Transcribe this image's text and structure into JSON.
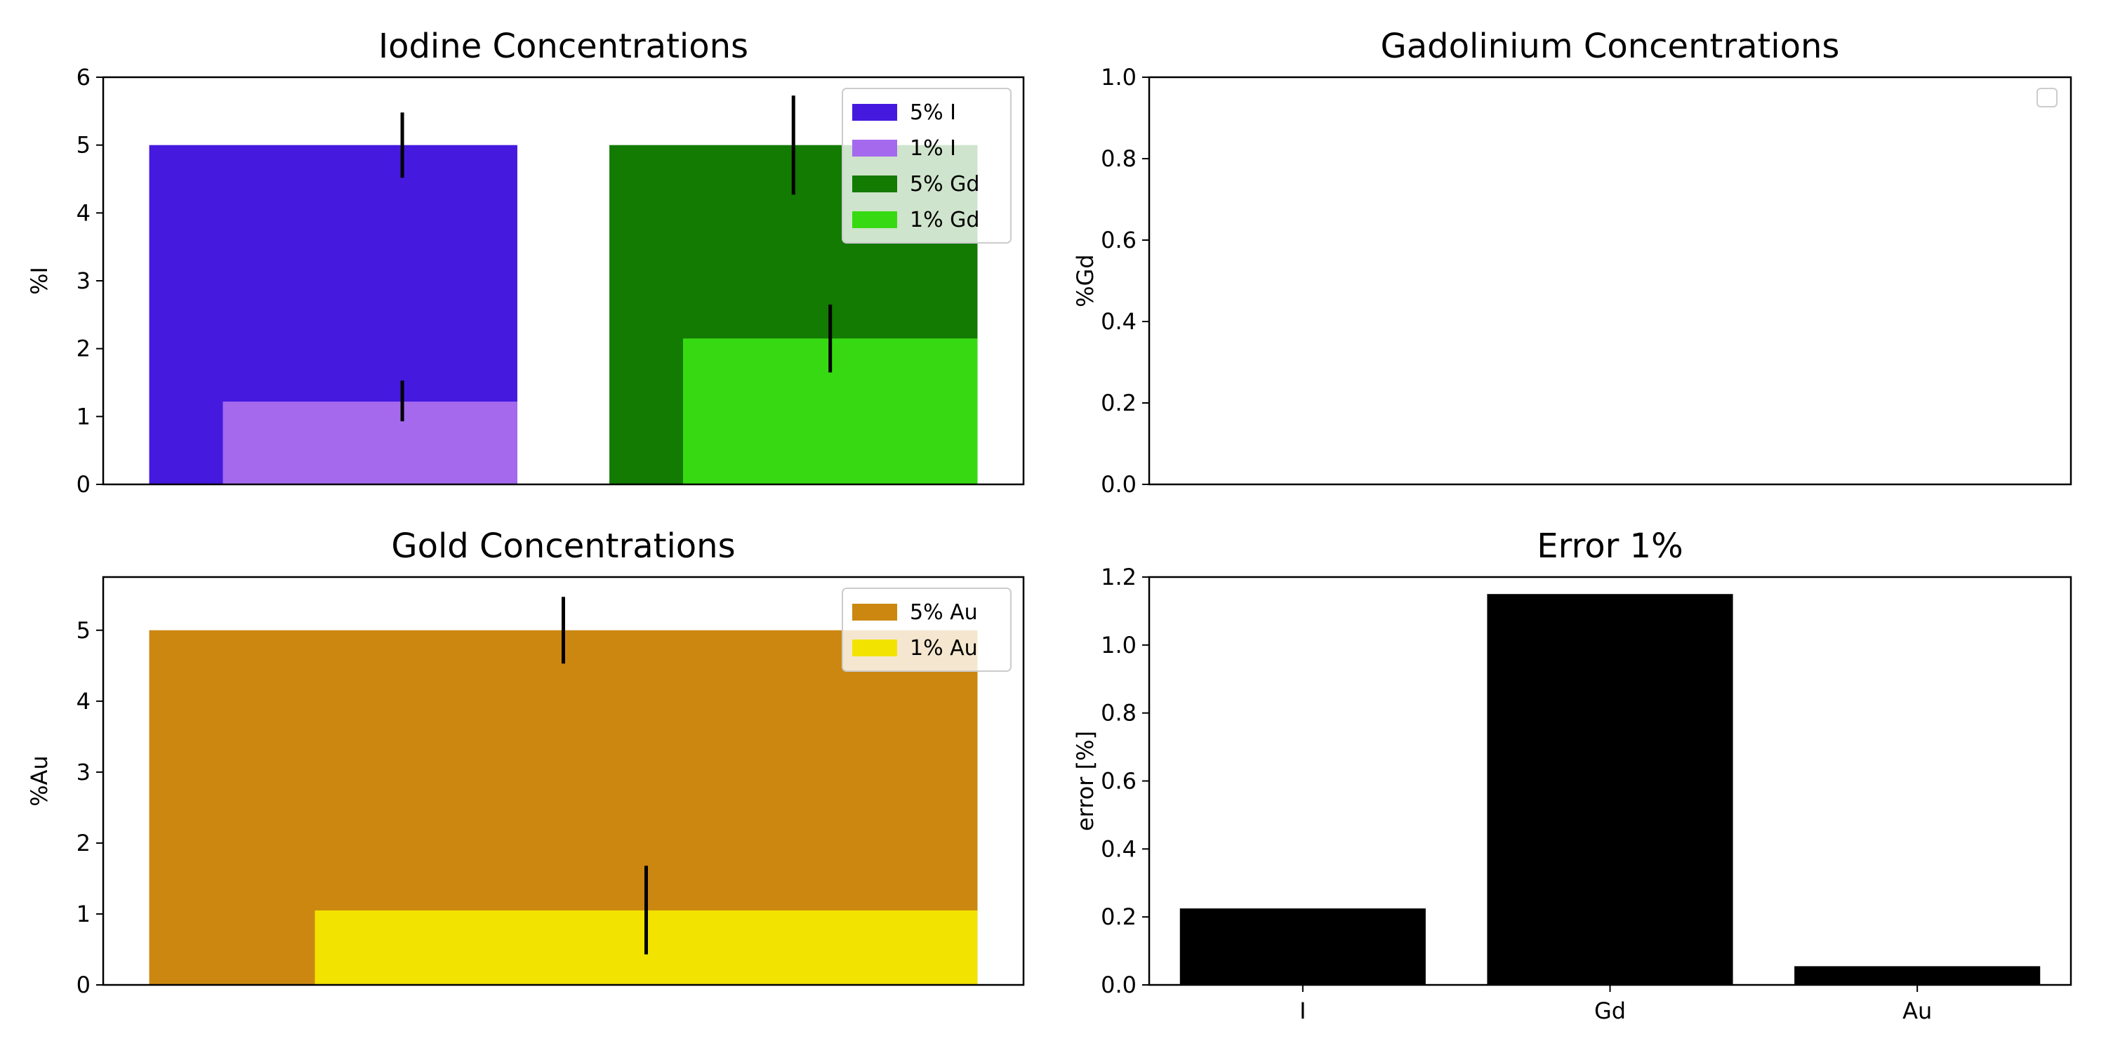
{
  "chart_data": [
    {
      "id": "iodine",
      "type": "bar",
      "title": "Iodine Concentrations",
      "xlabel": "",
      "ylabel": "%I",
      "ylim": [
        0,
        6
      ],
      "yticks": [
        0,
        1,
        2,
        3,
        4,
        5,
        6
      ],
      "ytick_labels": [
        "0",
        "1",
        "2",
        "3",
        "4",
        "5",
        "6"
      ],
      "xlim": [
        -0.6,
        1.4
      ],
      "grid": false,
      "legend": "top-right",
      "series": [
        {
          "name": "5% I",
          "color": "#4519de",
          "bars": [
            {
              "x_left": -0.5,
              "x_right": 0.3,
              "value": 5.0
            }
          ],
          "errors": [
            {
              "x": 0.05,
              "low": 4.52,
              "high": 5.48
            }
          ]
        },
        {
          "name": "1% I",
          "color": "#a569ee",
          "bars": [
            {
              "x_left": -0.34,
              "x_right": 0.3,
              "value": 1.22
            }
          ],
          "errors": [
            {
              "x": 0.05,
              "low": 0.93,
              "high": 1.53
            }
          ]
        },
        {
          "name": "5% Gd",
          "color": "#137a02",
          "bars": [
            {
              "x_left": 0.5,
              "x_right": 1.3,
              "value": 5.0
            }
          ],
          "errors": [
            {
              "x": 0.9,
              "low": 4.27,
              "high": 5.73
            }
          ]
        },
        {
          "name": "1% Gd",
          "color": "#37da12",
          "bars": [
            {
              "x_left": 0.66,
              "x_right": 1.3,
              "value": 2.15
            }
          ],
          "errors": [
            {
              "x": 0.98,
              "low": 1.65,
              "high": 2.65
            }
          ]
        }
      ]
    },
    {
      "id": "gadolinium",
      "type": "bar",
      "title": "Gadolinium Concentrations",
      "xlabel": "",
      "ylabel": "%Gd",
      "ylim": [
        0,
        1
      ],
      "yticks": [
        0,
        0.2,
        0.4,
        0.6,
        0.8,
        1.0
      ],
      "ytick_labels": [
        "0.0",
        "0.2",
        "0.4",
        "0.6",
        "0.8",
        "1.0"
      ],
      "grid": false,
      "legend": "top-right (empty)",
      "series": []
    },
    {
      "id": "gold",
      "type": "bar",
      "title": "Gold Concentrations",
      "xlabel": "",
      "ylabel": "%Au",
      "ylim": [
        0,
        5.75
      ],
      "yticks": [
        0,
        1,
        2,
        3,
        4,
        5
      ],
      "ytick_labels": [
        "0",
        "1",
        "2",
        "3",
        "4",
        "5"
      ],
      "xlim": [
        -0.6,
        1.4
      ],
      "grid": false,
      "legend": "top-right",
      "series": [
        {
          "name": "5% Au",
          "color": "#cc8710",
          "bars": [
            {
              "x_left": -0.5,
              "x_right": 1.3,
              "value": 5.0
            }
          ],
          "errors": [
            {
              "x": 0.4,
              "low": 4.53,
              "high": 5.47
            }
          ]
        },
        {
          "name": "1% Au",
          "color": "#f2e300",
          "bars": [
            {
              "x_left": -0.14,
              "x_right": 1.3,
              "value": 1.05
            }
          ],
          "errors": [
            {
              "x": 0.58,
              "low": 0.43,
              "high": 1.68
            }
          ]
        }
      ]
    },
    {
      "id": "error",
      "type": "bar",
      "title": "Error 1%",
      "xlabel": "",
      "ylabel": "error [%]",
      "ylim": [
        0,
        1.2
      ],
      "yticks": [
        0,
        0.2,
        0.4,
        0.6,
        0.8,
        1.0,
        1.2
      ],
      "ytick_labels": [
        "0.0",
        "0.2",
        "0.4",
        "0.6",
        "0.8",
        "1.0",
        "1.2"
      ],
      "categories": [
        "I",
        "Gd",
        "Au"
      ],
      "values": [
        0.225,
        1.15,
        0.055
      ],
      "color": "#000000",
      "grid": false
    }
  ]
}
